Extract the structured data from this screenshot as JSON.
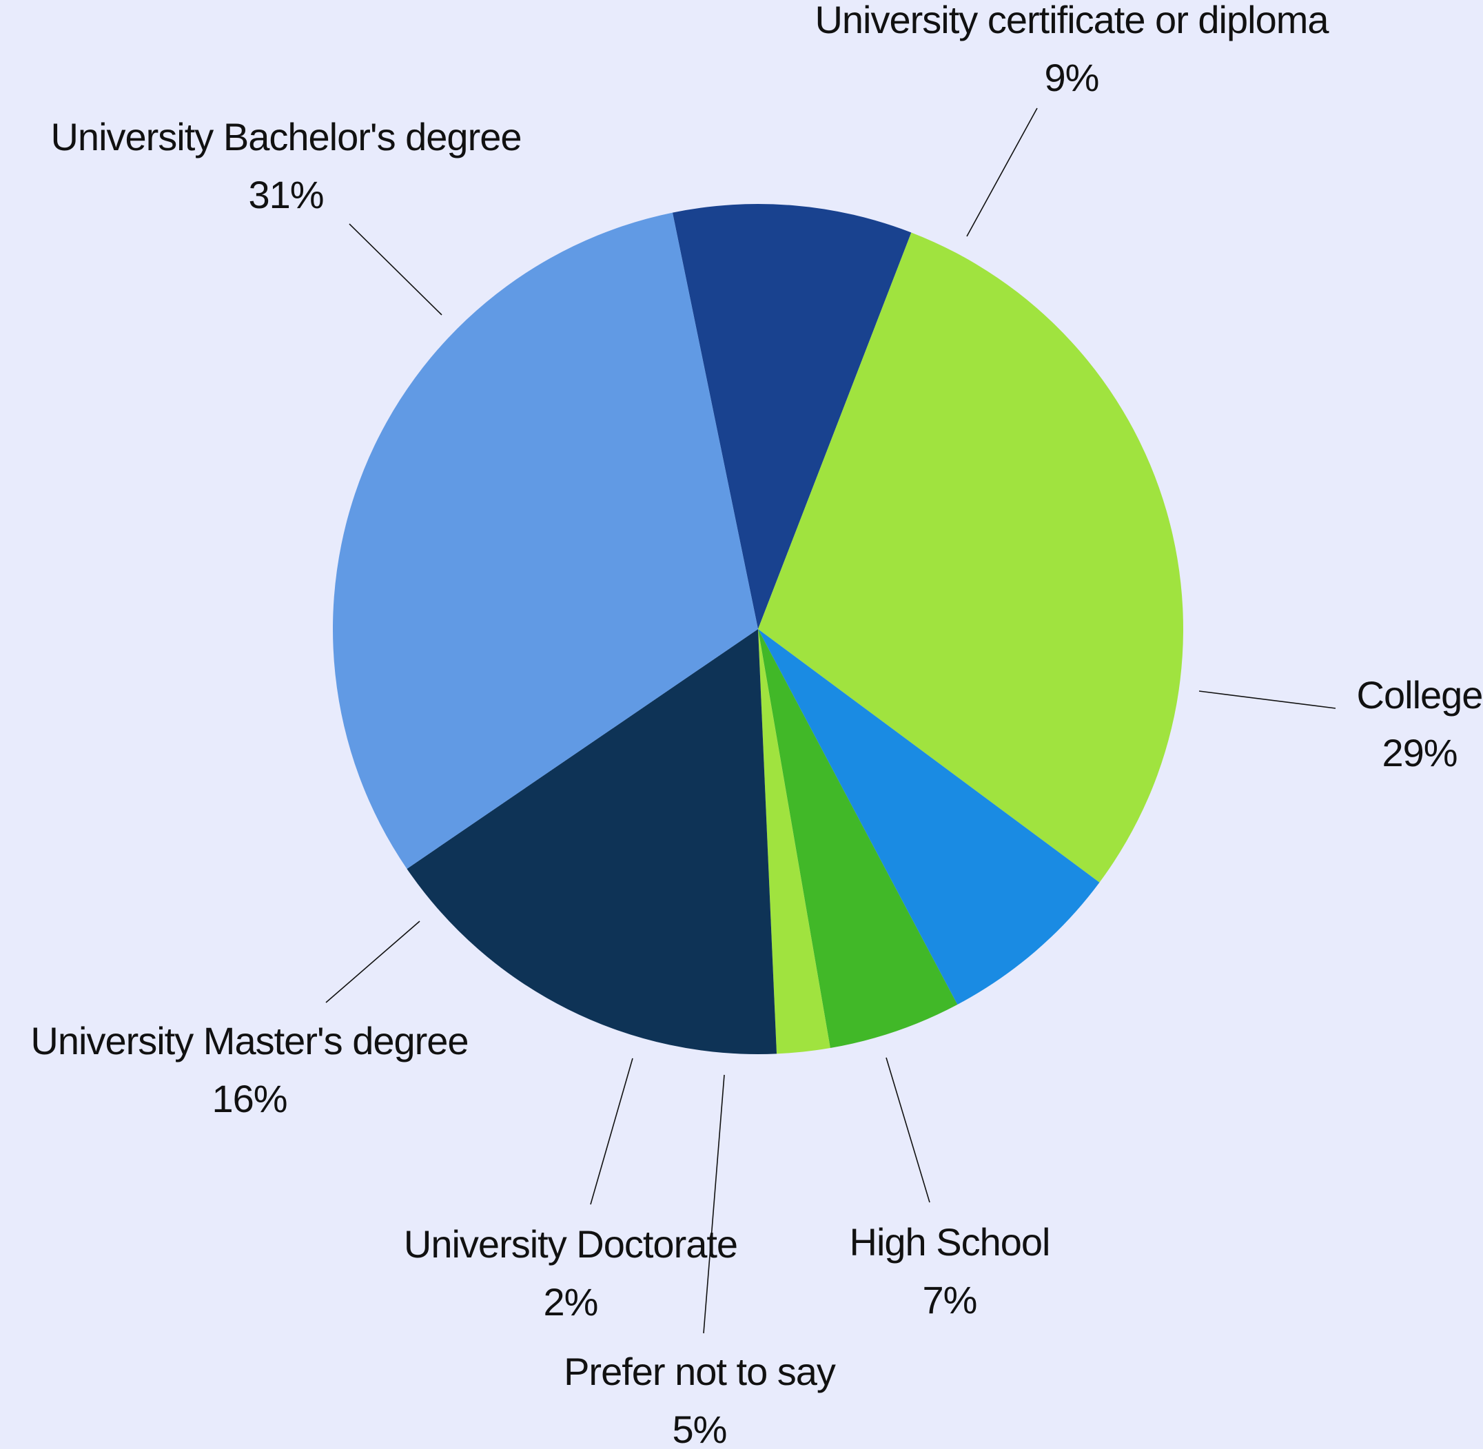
{
  "chart_data": {
    "type": "pie",
    "slices": [
      {
        "label": "University certificate or diploma",
        "value": 9,
        "value_label": "9%",
        "color": "#19428f"
      },
      {
        "label": "College",
        "value": 29,
        "value_label": "29%",
        "color": "#a0e33f"
      },
      {
        "label": "High School",
        "value": 7,
        "value_label": "7%",
        "color": "#1a8be3"
      },
      {
        "label": "Prefer not to say",
        "value": 5,
        "value_label": "5%",
        "color": "#41b828"
      },
      {
        "label": "University Doctorate",
        "value": 2,
        "value_label": "2%",
        "color": "#a0e33f"
      },
      {
        "label": "University Master's degree",
        "value": 16,
        "value_label": "16%",
        "color": "#0e3356"
      },
      {
        "label": "University Bachelor's degree",
        "value": 31,
        "value_label": "31%",
        "color": "#619ae4"
      }
    ]
  }
}
